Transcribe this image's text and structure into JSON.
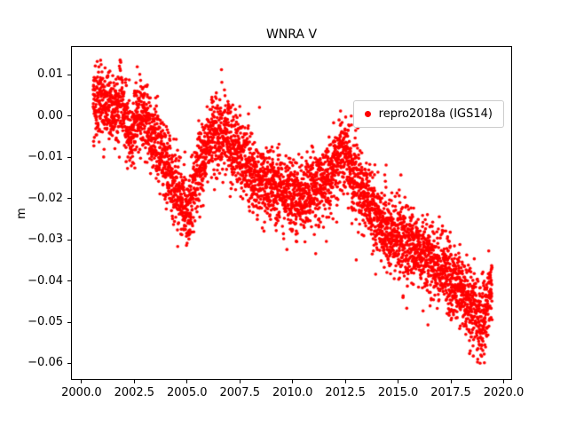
{
  "chart_data": {
    "type": "scatter",
    "title": "WNRA V",
    "xlabel": "",
    "ylabel": "m",
    "xlim": [
      1999.5,
      2020.4
    ],
    "ylim": [
      -0.064,
      0.017
    ],
    "grid": false,
    "legend_location": "upper right",
    "xticks": [
      {
        "label": "2000.0",
        "value": 2000.0
      },
      {
        "label": "2002.5",
        "value": 2002.5
      },
      {
        "label": "2005.0",
        "value": 2005.0
      },
      {
        "label": "2007.5",
        "value": 2007.5
      },
      {
        "label": "2010.0",
        "value": 2010.0
      },
      {
        "label": "2012.5",
        "value": 2012.5
      },
      {
        "label": "2015.0",
        "value": 2015.0
      },
      {
        "label": "2017.5",
        "value": 2017.5
      },
      {
        "label": "2020.0",
        "value": 2020.0
      }
    ],
    "yticks": [
      {
        "label": "0.01",
        "value": 0.01
      },
      {
        "label": "0.00",
        "value": 0.0
      },
      {
        "label": "−0.01",
        "value": -0.01
      },
      {
        "label": "−0.02",
        "value": -0.02
      },
      {
        "label": "−0.03",
        "value": -0.03
      },
      {
        "label": "−0.04",
        "value": -0.04
      },
      {
        "label": "−0.05",
        "value": -0.05
      },
      {
        "label": "−0.06",
        "value": -0.06
      }
    ],
    "series": [
      {
        "name": "repro2018a (IGS14)",
        "color": "#ff0000",
        "marker": "dot",
        "marker_radius_px": 1.8,
        "x_start": 2000.55,
        "x_end": 2019.45,
        "points_per_year": 250,
        "noise_std": 0.0045,
        "outlier_rate": 0.012,
        "outlier_max_drop": 0.012,
        "seed": 42,
        "trend": [
          [
            2000.55,
            0.003
          ],
          [
            2001.0,
            0.004
          ],
          [
            2001.5,
            0.001
          ],
          [
            2001.9,
            0.004
          ],
          [
            2002.3,
            -0.005
          ],
          [
            2002.8,
            0.001
          ],
          [
            2003.2,
            -0.003
          ],
          [
            2003.7,
            -0.008
          ],
          [
            2004.2,
            -0.014
          ],
          [
            2004.7,
            -0.02
          ],
          [
            2005.1,
            -0.024
          ],
          [
            2005.5,
            -0.013
          ],
          [
            2006.0,
            -0.006
          ],
          [
            2006.45,
            -0.002
          ],
          [
            2006.9,
            -0.005
          ],
          [
            2007.4,
            -0.009
          ],
          [
            2008.0,
            -0.013
          ],
          [
            2008.6,
            -0.016
          ],
          [
            2009.2,
            -0.018
          ],
          [
            2009.8,
            -0.018
          ],
          [
            2010.3,
            -0.02
          ],
          [
            2010.8,
            -0.019
          ],
          [
            2011.3,
            -0.017
          ],
          [
            2011.8,
            -0.014
          ],
          [
            2012.2,
            -0.01
          ],
          [
            2012.5,
            -0.009
          ],
          [
            2012.9,
            -0.014
          ],
          [
            2013.4,
            -0.019
          ],
          [
            2014.0,
            -0.024
          ],
          [
            2014.6,
            -0.028
          ],
          [
            2015.2,
            -0.03
          ],
          [
            2015.8,
            -0.032
          ],
          [
            2016.4,
            -0.034
          ],
          [
            2017.0,
            -0.037
          ],
          [
            2017.6,
            -0.04
          ],
          [
            2018.1,
            -0.043
          ],
          [
            2018.6,
            -0.047
          ],
          [
            2018.95,
            -0.051
          ],
          [
            2019.2,
            -0.046
          ],
          [
            2019.45,
            -0.04
          ]
        ]
      }
    ]
  }
}
